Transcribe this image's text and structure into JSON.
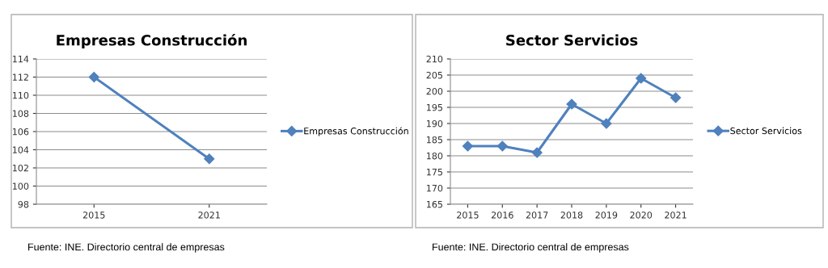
{
  "chart_data": [
    {
      "type": "line",
      "title": "Empresas Construcción",
      "categories": [
        "2015",
        "2021"
      ],
      "series": [
        {
          "name": "Empresas Construcción",
          "color": "#4f81bd",
          "values": [
            112,
            103
          ]
        }
      ],
      "ylim": [
        98,
        114
      ],
      "yticks": [
        98,
        100,
        102,
        104,
        106,
        108,
        110,
        112,
        114
      ],
      "grid": "y",
      "legend": "right",
      "marker": "diamond",
      "line_style": "solid",
      "annotations": [
        "Fuente: INE. Directorio central de empresas"
      ]
    },
    {
      "type": "line",
      "title": "Sector Servicios",
      "categories": [
        "2015",
        "2016",
        "2017",
        "2018",
        "2019",
        "2020",
        "2021"
      ],
      "series": [
        {
          "name": "Sector Servicios",
          "color": "#4f81bd",
          "values": [
            183,
            183,
            181,
            196,
            190,
            204,
            198
          ]
        }
      ],
      "ylim": [
        165,
        210
      ],
      "yticks": [
        165,
        170,
        175,
        180,
        185,
        190,
        195,
        200,
        205,
        210
      ],
      "grid": "y",
      "legend": "right",
      "marker": "diamond",
      "line_style": "solid",
      "annotations": [
        "Fuente: INE. Directorio central de empresas"
      ]
    }
  ]
}
